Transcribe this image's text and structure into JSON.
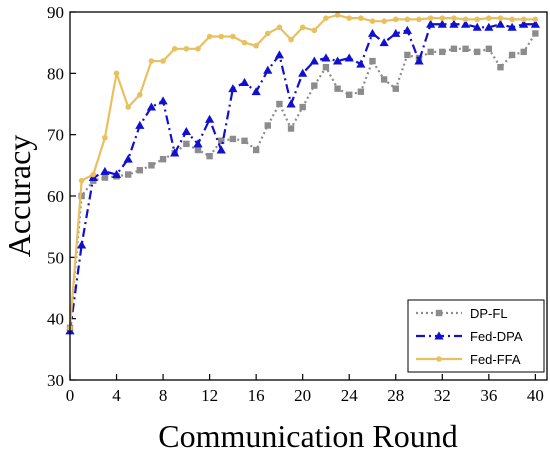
{
  "chart_data": {
    "type": "line",
    "title": "",
    "xlabel": "Communication Round",
    "ylabel": "Accuracy",
    "xlim": [
      0,
      41
    ],
    "ylim": [
      30,
      90
    ],
    "xticks": [
      0,
      4,
      8,
      12,
      16,
      20,
      24,
      28,
      32,
      36,
      40
    ],
    "yticks": [
      30,
      40,
      50,
      60,
      70,
      80,
      90
    ],
    "grid": false,
    "legend_position": "bottom-right",
    "x": [
      0,
      1,
      2,
      3,
      4,
      5,
      6,
      7,
      8,
      9,
      10,
      11,
      12,
      13,
      14,
      15,
      16,
      17,
      18,
      19,
      20,
      21,
      22,
      23,
      24,
      25,
      26,
      27,
      28,
      29,
      30,
      31,
      32,
      33,
      34,
      35,
      36,
      37,
      38,
      39,
      40
    ],
    "series": [
      {
        "name": "DP-FL",
        "color": "#8c8c8c",
        "line_style": "dotted",
        "marker": "square",
        "values": [
          38.5,
          60.0,
          62.5,
          63.0,
          63.2,
          63.5,
          64.2,
          65.0,
          66.0,
          67.0,
          68.5,
          67.5,
          66.5,
          69.0,
          69.3,
          69.0,
          67.5,
          71.5,
          75.0,
          71.0,
          74.5,
          78.0,
          81.0,
          77.5,
          76.5,
          77.0,
          82.0,
          79.0,
          77.5,
          83.0,
          82.5,
          83.5,
          83.5,
          84.0,
          84.0,
          83.5,
          84.0,
          81.0,
          83.0,
          83.5,
          86.5
        ]
      },
      {
        "name": "Fed-DPA",
        "color": "#1010d0",
        "line_style": "dashdot",
        "marker": "triangle",
        "values": [
          38.0,
          52.0,
          63.0,
          64.0,
          63.5,
          66.0,
          71.5,
          74.5,
          75.5,
          67.0,
          70.5,
          68.5,
          72.5,
          67.5,
          77.5,
          78.5,
          77.0,
          80.5,
          83.0,
          75.0,
          80.0,
          82.0,
          82.5,
          82.0,
          82.5,
          81.5,
          86.5,
          85.0,
          86.5,
          87.0,
          82.0,
          88.0,
          88.0,
          88.0,
          88.0,
          87.5,
          87.5,
          88.0,
          87.5,
          88.0,
          88.0
        ]
      },
      {
        "name": "Fed-FFA",
        "color": "#e8c060",
        "line_style": "solid",
        "marker": "circle",
        "values": [
          38.5,
          62.5,
          63.5,
          69.5,
          80.0,
          74.5,
          76.5,
          82.0,
          82.0,
          84.0,
          84.0,
          84.0,
          86.0,
          86.0,
          86.0,
          85.0,
          84.5,
          86.5,
          87.5,
          85.5,
          87.5,
          87.0,
          89.0,
          89.5,
          89.0,
          89.0,
          88.5,
          88.5,
          88.8,
          88.8,
          88.8,
          89.0,
          89.0,
          89.0,
          88.8,
          88.8,
          89.0,
          89.0,
          88.8,
          88.8,
          88.8
        ]
      }
    ]
  }
}
